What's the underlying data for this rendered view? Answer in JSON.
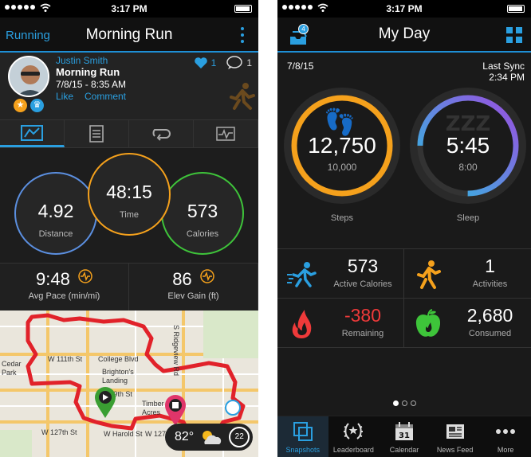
{
  "left": {
    "status_time": "3:17 PM",
    "back_label": "Running",
    "title": "Morning Run",
    "profile": {
      "name": "Justin Smith",
      "activity": "Morning Run",
      "date": "7/8/15 - 8:35 AM",
      "like": "Like",
      "comment": "Comment",
      "likes_count": "1",
      "comments_count": "1"
    },
    "tabs": [
      {
        "icon": "stats-icon",
        "active": true
      },
      {
        "icon": "notes-icon",
        "active": false
      },
      {
        "icon": "laps-icon",
        "active": false
      },
      {
        "icon": "chart-icon",
        "active": false
      }
    ],
    "metrics": {
      "distance": {
        "value": "4.92",
        "label": "Distance"
      },
      "time": {
        "value": "48:15",
        "label": "Time"
      },
      "calories": {
        "value": "573",
        "label": "Calories"
      }
    },
    "pace": {
      "value": "9:48",
      "label": "Avg Pace (min/mi)"
    },
    "elev": {
      "value": "86",
      "label": "Elev Gain (ft)"
    },
    "map_labels": [
      "W 111th St",
      "College Blvd",
      "Brighton's Landing",
      "Cedar Park",
      "W 119th St",
      "S Ridgeview Rd",
      "W 127th St",
      "W Harold St",
      "W 127th St",
      "Timber Acres"
    ],
    "weather": {
      "temp": "82°",
      "wind": "22"
    }
  },
  "right": {
    "status_time": "3:17 PM",
    "title": "My Day",
    "inbox_count": "4",
    "date": "7/8/15",
    "sync_label": "Last Sync",
    "sync_time": "2:34 PM",
    "steps": {
      "value": "12,750",
      "goal": "10,000",
      "label": "Steps"
    },
    "sleep": {
      "value": "5:45",
      "goal": "8:00",
      "label": "Sleep"
    },
    "active_calories": {
      "value": "573",
      "label": "Active Calories"
    },
    "activities": {
      "value": "1",
      "label": "Activities"
    },
    "remaining": {
      "value": "-380",
      "label": "Remaining"
    },
    "consumed": {
      "value": "2,680",
      "label": "Consumed"
    },
    "tabbar": [
      "Snapshots",
      "Leaderboard",
      "Calendar",
      "News Feed",
      "More"
    ],
    "calendar_day": "31",
    "colors": {
      "accent": "#2a9fe0",
      "steps": "#f5a11c",
      "sleep": "#9b4ee0",
      "distance": "#5b8fe0",
      "calories": "#3ec43a",
      "remaining": "#ef3a3a"
    }
  }
}
